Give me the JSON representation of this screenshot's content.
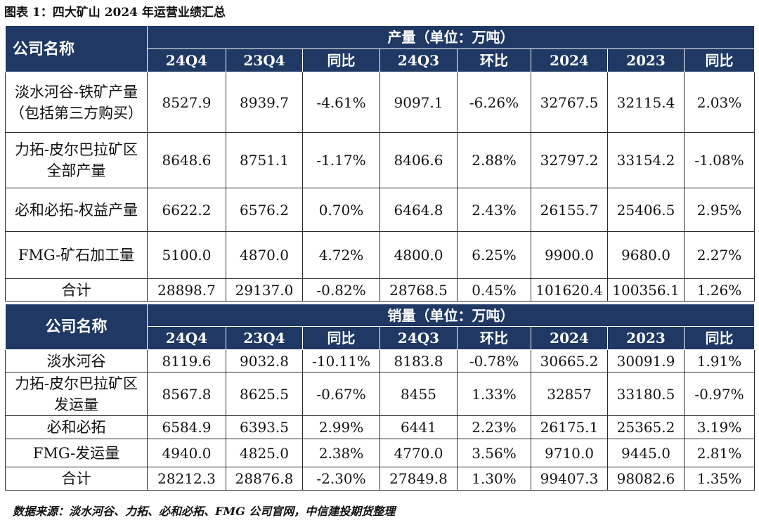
{
  "figure_title": "图表 1：四大矿山 2024 年运营业绩汇总",
  "production": {
    "company_header": "公司名称",
    "group_header": "产量（单位：万吨）",
    "columns": [
      "24Q4",
      "23Q4",
      "同比",
      "24Q3",
      "环比",
      "2024",
      "2023",
      "同比"
    ],
    "rows": [
      {
        "name": "淡水河谷-铁矿产量（包括第三方购买）",
        "values": [
          "8527.9",
          "8939.7",
          "-4.61%",
          "9097.1",
          "-6.26%",
          "32767.5",
          "32115.4",
          "2.03%"
        ]
      },
      {
        "name": "力拓-皮尔巴拉矿区全部产量",
        "values": [
          "8648.6",
          "8751.1",
          "-1.17%",
          "8406.6",
          "2.88%",
          "32797.2",
          "33154.2",
          "-1.08%"
        ]
      },
      {
        "name": "必和必拓-权益产量",
        "values": [
          "6622.2",
          "6576.2",
          "0.70%",
          "6464.8",
          "2.43%",
          "26155.7",
          "25406.5",
          "2.95%"
        ]
      },
      {
        "name": "FMG-矿石加工量",
        "values": [
          "5100.0",
          "4870.0",
          "4.72%",
          "4800.0",
          "6.25%",
          "9900.0",
          "9680.0",
          "2.27%"
        ]
      },
      {
        "name": "合计",
        "values": [
          "28898.7",
          "29137.0",
          "-0.82%",
          "28768.5",
          "0.45%",
          "101620.4",
          "100356.1",
          "1.26%"
        ]
      }
    ]
  },
  "sales": {
    "company_header": "公司名称",
    "group_header": "销量（单位：万吨）",
    "columns": [
      "24Q4",
      "23Q4",
      "同比",
      "24Q3",
      "环比",
      "2024",
      "2023",
      "同比"
    ],
    "rows": [
      {
        "name": "淡水河谷",
        "values": [
          "8119.6",
          "9032.8",
          "-10.11%",
          "8183.8",
          "-0.78%",
          "30665.2",
          "30091.9",
          "1.91%"
        ]
      },
      {
        "name": "力拓-皮尔巴拉矿区发运量",
        "values": [
          "8567.8",
          "8625.5",
          "-0.67%",
          "8455",
          "1.33%",
          "32857",
          "33180.5",
          "-0.97%"
        ]
      },
      {
        "name": "必和必拓",
        "values": [
          "6584.9",
          "6393.5",
          "2.99%",
          "6441",
          "2.23%",
          "26175.1",
          "25365.2",
          "3.19%"
        ]
      },
      {
        "name": "FMG-发运量",
        "values": [
          "4940.0",
          "4825.0",
          "2.38%",
          "4770.0",
          "3.56%",
          "9710.0",
          "9445.0",
          "2.81%"
        ]
      },
      {
        "name": "合计",
        "values": [
          "28212.3",
          "28876.8",
          "-2.30%",
          "27849.8",
          "1.30%",
          "99407.3",
          "98082.6",
          "1.35%"
        ]
      }
    ]
  },
  "source_note": "数据来源：淡水河谷、力拓、必和必拓、FMG 公司官网，中信建投期货整理"
}
